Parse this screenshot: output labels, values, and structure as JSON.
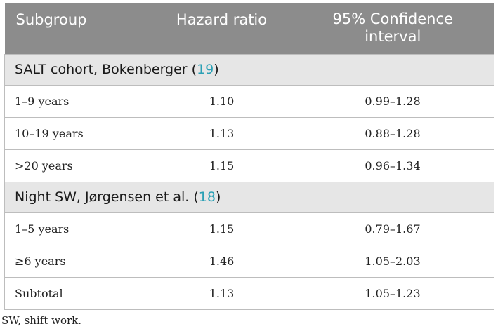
{
  "header": {
    "col1": "Subgroup",
    "col2": "Hazard ratio",
    "col3_line1": "95% Confidence",
    "col3_line2": "interval"
  },
  "sections": [
    {
      "title_text": "SALT cohort, Bokenberger (",
      "title_ref": "19",
      "title_close": ")",
      "rows": [
        {
          "subgroup": "1–9 years",
          "hr": "1.10",
          "ci": "0.99–1.28"
        },
        {
          "subgroup": "10–19 years",
          "hr": "1.13",
          "ci": "0.88–1.28"
        },
        {
          "subgroup": ">20 years",
          "hr": "1.15",
          "ci": "0.96–1.34"
        }
      ]
    },
    {
      "title_text": "Night SW, Jørgensen et al. (",
      "title_ref": "18",
      "title_close": ")",
      "rows": [
        {
          "subgroup": "1–5 years",
          "hr": "1.15",
          "ci": "0.79–1.67"
        },
        {
          "subgroup": "≥6 years",
          "hr": "1.46",
          "ci": "1.05–2.03"
        },
        {
          "subgroup": "Subtotal",
          "hr": "1.13",
          "ci": "1.05–1.23"
        }
      ]
    }
  ],
  "footnote": "SW, shift work.",
  "colors": {
    "header_bg": "#8c8c8c",
    "section_bg": "#e6e6e6",
    "ref_link": "#2aa0b5"
  }
}
